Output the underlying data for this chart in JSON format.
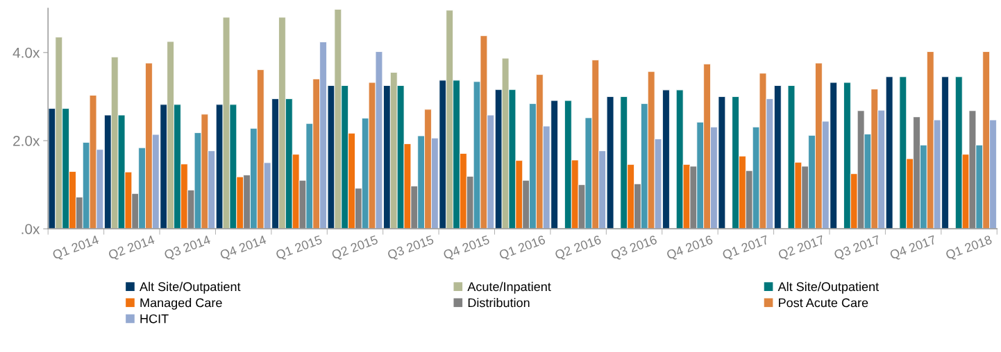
{
  "chart_data": {
    "type": "bar",
    "categories": [
      "Q1 2014",
      "Q2 2014",
      "Q3 2014",
      "Q4 2014",
      "Q1 2015",
      "Q2 2015",
      "Q3 2015",
      "Q4 2015",
      "Q1 2016",
      "Q2 2016",
      "Q3 2016",
      "Q4 2016",
      "Q1 2017",
      "Q2 2017",
      "Q3 2017",
      "Q4 2017",
      "Q1 2018"
    ],
    "series": [
      {
        "name": "Alt Site/Outpatient",
        "color": "#003764",
        "values": [
          2.73,
          2.58,
          2.82,
          2.82,
          2.95,
          3.25,
          3.25,
          3.37,
          3.16,
          2.91,
          3.0,
          3.15,
          3.0,
          3.25,
          3.32,
          3.45,
          3.45
        ]
      },
      {
        "name": "Acute/Inpatient",
        "color": "#b4ba94",
        "values": [
          4.35,
          3.9,
          4.25,
          4.8,
          4.8,
          4.98,
          3.55,
          4.96,
          3.87,
          null,
          null,
          null,
          null,
          null,
          null,
          null,
          null
        ]
      },
      {
        "name": "Alt Site/Outpatient",
        "color": "#00777b",
        "values": [
          2.73,
          2.58,
          2.82,
          2.82,
          2.95,
          3.25,
          3.25,
          3.37,
          3.16,
          2.91,
          3.0,
          3.15,
          3.0,
          3.25,
          3.32,
          3.45,
          3.45
        ]
      },
      {
        "name": "Managed Care",
        "color": "#f0720f",
        "values": [
          1.3,
          1.29,
          1.47,
          1.18,
          1.69,
          2.17,
          1.93,
          1.71,
          1.55,
          1.56,
          1.46,
          1.46,
          1.65,
          1.51,
          1.25,
          1.59,
          1.69
        ]
      },
      {
        "name": "Distribution",
        "color": "#808080",
        "values": [
          0.72,
          0.8,
          0.88,
          1.22,
          1.1,
          0.92,
          0.97,
          1.19,
          1.1,
          1.0,
          1.02,
          1.42,
          1.32,
          1.42,
          2.68,
          2.54,
          2.68
        ]
      },
      {
        "color": "#4599b1",
        "values": [
          1.96,
          1.84,
          2.18,
          2.28,
          2.39,
          2.51,
          2.11,
          3.34,
          2.84,
          2.52,
          2.84,
          2.42,
          2.31,
          2.12,
          2.15,
          1.9,
          1.9
        ]
      },
      {
        "name": "Post Acute Care",
        "color": "#de843f",
        "values": [
          3.03,
          3.76,
          2.6,
          3.61,
          3.4,
          3.32,
          2.71,
          4.38,
          3.5,
          3.83,
          3.57,
          3.74,
          3.53,
          3.76,
          3.17,
          4.02,
          4.02
        ]
      },
      {
        "name": "HCIT",
        "color": "#94a9d1",
        "values": [
          1.8,
          2.14,
          1.77,
          1.5,
          4.24,
          4.02,
          2.06,
          2.58,
          2.33,
          1.77,
          2.04,
          2.31,
          2.95,
          2.44,
          2.69,
          2.47,
          2.47
        ]
      }
    ],
    "ylim": [
      0,
      5
    ],
    "yticks": [
      {
        "value": 0,
        "label": ".0x"
      },
      {
        "value": 2,
        "label": "2.0x"
      },
      {
        "value": 4,
        "label": "4.0x"
      }
    ],
    "grid": false,
    "legend": "bottom"
  }
}
